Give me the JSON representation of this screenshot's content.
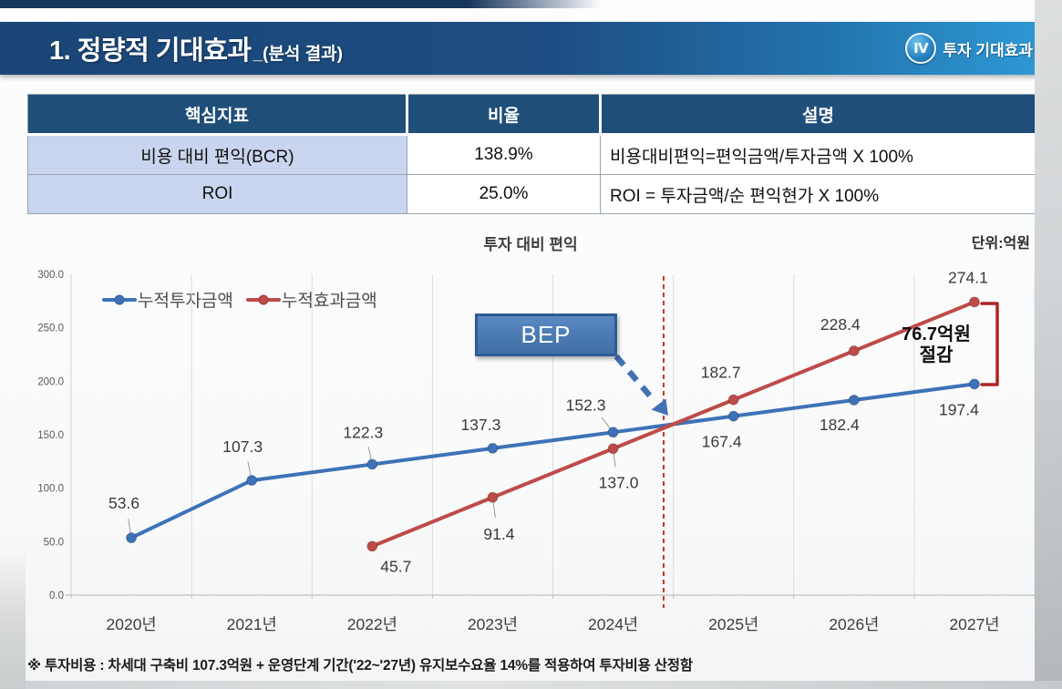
{
  "header": {
    "title": "1. 정량적 기대효과",
    "subtitle": "_(분석 결과)",
    "badge": {
      "numeral": "Ⅳ",
      "label": "투자 기대효과"
    }
  },
  "table": {
    "columns": [
      "핵심지표",
      "비율",
      "설명"
    ],
    "rows": [
      {
        "indicator": "비용 대비 편익(BCR)",
        "ratio": "138.9%",
        "description": "비용대비편익=편익금액/투자금액 X 100%"
      },
      {
        "indicator": "ROI",
        "ratio": "25.0%",
        "description": "ROI = 투자금액/순 편익현가 X 100%"
      }
    ]
  },
  "chart_data": {
    "type": "line",
    "title": "투자 대비 편익",
    "unit_label": "단위:억원",
    "categories": [
      "2020년",
      "2021년",
      "2022년",
      "2023년",
      "2024년",
      "2025년",
      "2026년",
      "2027년"
    ],
    "ylim": [
      0,
      300
    ],
    "yticks": [
      "0.0",
      "50.0",
      "100.0",
      "150.0",
      "200.0",
      "250.0",
      "300.0"
    ],
    "grid": "vertical-only",
    "legend_position": "top-left-inside",
    "series": [
      {
        "name": "누적투자금액",
        "color": "#3E72B8",
        "values": [
          53.6,
          107.3,
          122.3,
          137.3,
          152.3,
          167.4,
          182.4,
          197.4
        ],
        "label_offsets": [
          [
            -8,
            -38
          ],
          [
            -10,
            -37
          ],
          [
            -10,
            -35
          ],
          [
            -13,
            -26
          ],
          [
            -30,
            -30
          ],
          [
            -13,
            28
          ],
          [
            -16,
            27
          ],
          [
            -17,
            28
          ]
        ],
        "leader_lines": [
          true,
          true,
          true,
          false,
          true,
          false,
          false,
          false
        ]
      },
      {
        "name": "누적효과금액",
        "color": "#BE4B48",
        "values": [
          null,
          null,
          45.7,
          91.4,
          137.0,
          182.7,
          228.4,
          274.1
        ],
        "label_offsets": [
          null,
          null,
          [
            26,
            22
          ],
          [
            7,
            40
          ],
          [
            6,
            37
          ],
          [
            -14,
            -30
          ],
          [
            -15,
            -29
          ],
          [
            -7,
            -27
          ]
        ],
        "leader_lines": [
          false,
          false,
          false,
          true,
          true,
          false,
          false,
          false
        ]
      }
    ],
    "annotations": {
      "bep_label": "BEP",
      "bep_line_color": "#C00000",
      "savings_line1": "76.7억원",
      "savings_line2": "절감",
      "savings_bracket_color": "#B02328"
    }
  },
  "footnote": "※ 투자비용 : 차세대 구축비 107.3억원 + 운영단계 기간('22~'27년) 유지보수요율 14%를 적용하여 투자비용 산정함"
}
